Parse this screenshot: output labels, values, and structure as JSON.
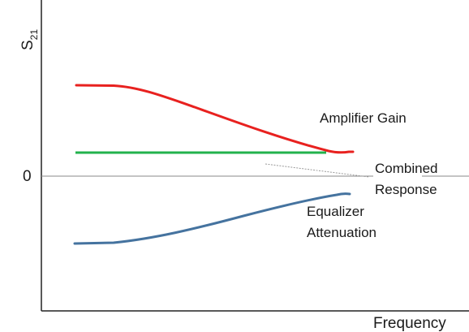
{
  "y_axis": {
    "label_main": "S",
    "label_sub": "21",
    "zero_label": "0"
  },
  "x_axis": {
    "label": "Frequency"
  },
  "labels": {
    "amplifier": "Amplifier Gain",
    "combined_line1": "Combined",
    "combined_line2": "Response",
    "equalizer_line1": "Equalizer",
    "equalizer_line2": "Attenuation"
  },
  "colors": {
    "amplifier": "#e8211f",
    "combined": "#22b24c",
    "equalizer": "#45739f",
    "axis": "#222222",
    "zero_line": "#8a8a8a",
    "pointer": "#9a9a9a"
  }
}
